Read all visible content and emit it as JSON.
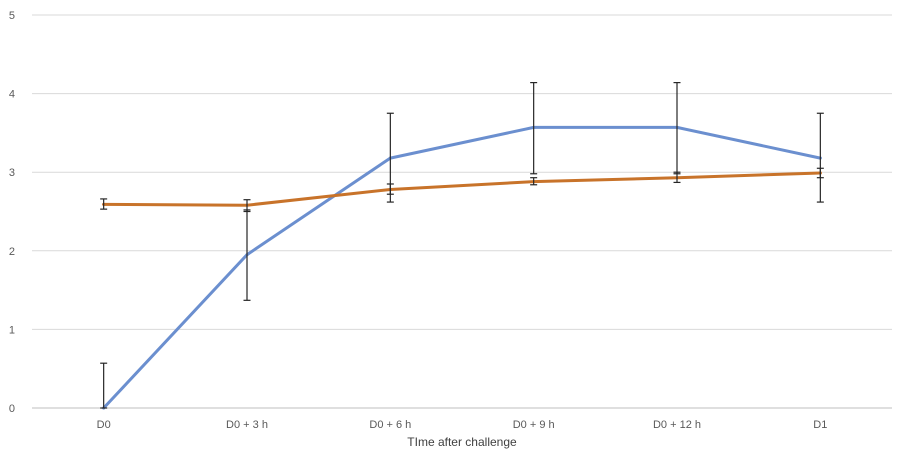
{
  "chart_data": {
    "type": "line",
    "title": "",
    "xlabel": "TIme after challenge",
    "ylabel": "",
    "categories": [
      "D0",
      "D0 + 3 h",
      "D0 + 6 h",
      "D0 + 9 h",
      "D0 + 12 h",
      "D1"
    ],
    "ylim": [
      0,
      5
    ],
    "yticks": [
      "0",
      "1",
      "2",
      "3",
      "4",
      "5"
    ],
    "grid": true,
    "legend": "none",
    "series": [
      {
        "color": "#6b8fcf",
        "values": [
          0.0,
          1.95,
          3.18,
          3.57,
          3.57,
          3.18
        ],
        "error_bars": [
          [
            0.0,
            0.57
          ],
          [
            1.37,
            2.52
          ],
          [
            2.62,
            3.75
          ],
          [
            2.98,
            4.14
          ],
          [
            2.98,
            4.14
          ],
          [
            2.62,
            3.75
          ]
        ]
      },
      {
        "color": "#c8732a",
        "values": [
          2.59,
          2.58,
          2.78,
          2.88,
          2.93,
          2.99
        ],
        "error_bars": [
          [
            2.53,
            2.66
          ],
          [
            2.5,
            2.65
          ],
          [
            2.72,
            2.85
          ],
          [
            2.84,
            2.93
          ],
          [
            2.87,
            3.0
          ],
          [
            2.93,
            3.05
          ]
        ]
      }
    ]
  }
}
